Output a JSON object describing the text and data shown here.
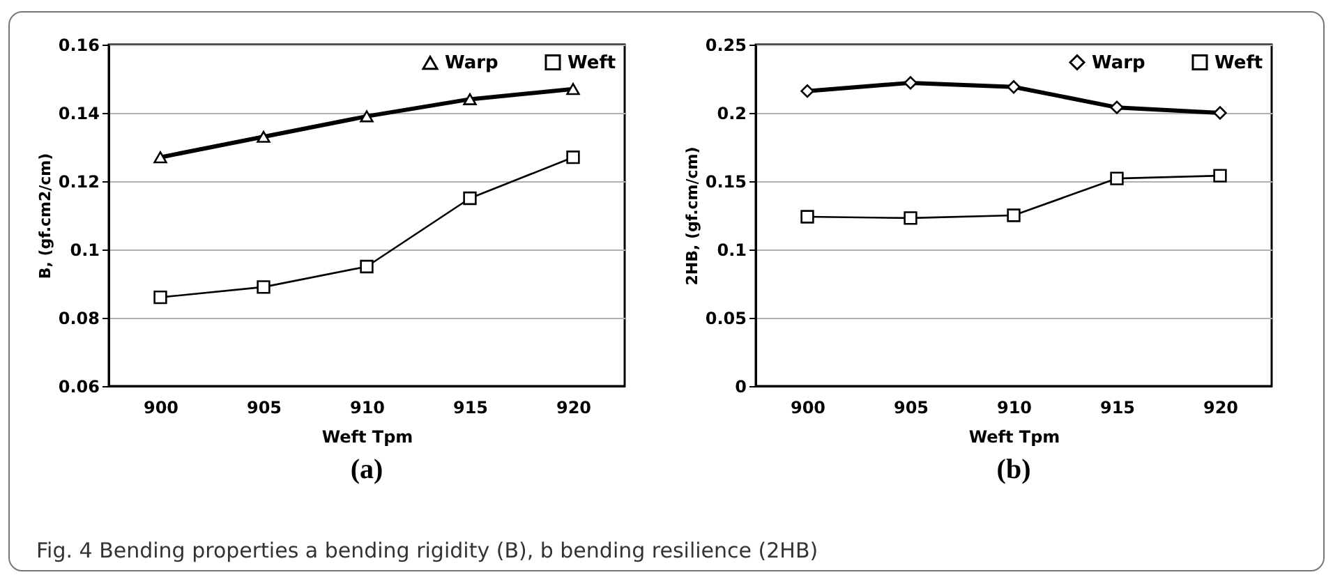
{
  "chart_data": [
    {
      "type": "line",
      "xlabel": "Weft Tpm",
      "ylabel": "B, (gf.cm2/cm)",
      "categories": [
        "900",
        "905",
        "910",
        "915",
        "920"
      ],
      "series": [
        {
          "name": "Warp",
          "color": "#000000",
          "marker": "triangle",
          "values": [
            0.127,
            0.133,
            0.139,
            0.144,
            0.147
          ]
        },
        {
          "name": "Weft",
          "color": "#000000",
          "marker": "square",
          "values": [
            0.086,
            0.089,
            0.095,
            0.115,
            0.127
          ]
        }
      ],
      "ylim": [
        0.06,
        0.16
      ],
      "yticks": [
        0.06,
        0.08,
        0.1,
        0.12,
        0.14,
        0.16
      ],
      "grid": "y",
      "legend": "top right",
      "line_style": "solid",
      "annotations": [
        "(a)"
      ]
    },
    {
      "type": "line",
      "xlabel": "Weft Tpm",
      "ylabel": "2HB, (gf.cm/cm)",
      "categories": [
        "900",
        "905",
        "910",
        "915",
        "920"
      ],
      "series": [
        {
          "name": "Warp",
          "color": "#000000",
          "marker": "diamond",
          "values": [
            0.216,
            0.222,
            0.219,
            0.204,
            0.2
          ]
        },
        {
          "name": "Weft",
          "color": "#000000",
          "marker": "square",
          "values": [
            0.124,
            0.123,
            0.125,
            0.152,
            0.154
          ]
        }
      ],
      "ylim": [
        0,
        0.25
      ],
      "yticks": [
        0,
        0.05,
        0.1,
        0.15,
        0.2,
        0.25
      ],
      "grid": "y",
      "legend": "top right",
      "line_style": "solid",
      "annotations": [
        "(b)",
        "Fig. 4  Bending properties a bending rigidity (B), b bending resilience (2HB)"
      ]
    }
  ]
}
